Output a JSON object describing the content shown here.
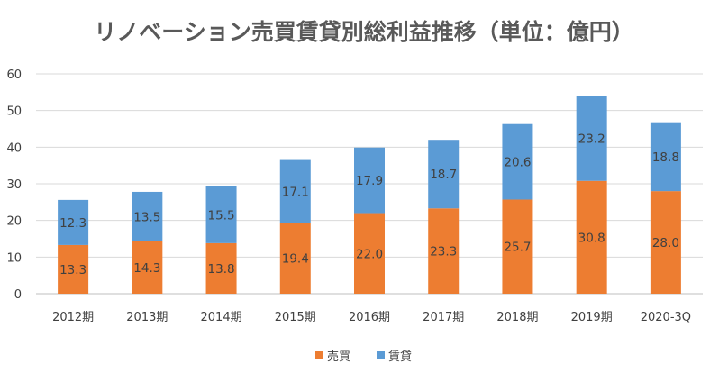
{
  "chart_data": {
    "type": "bar",
    "stacked": true,
    "title": "リノベーション売買賃貸別総利益推移（単位：億円）",
    "categories": [
      "2012期",
      "2013期",
      "2014期",
      "2015期",
      "2016期",
      "2017期",
      "2018期",
      "2019期",
      "2020-3Q"
    ],
    "series": [
      {
        "name": "売買",
        "color": "#ED7D31",
        "values": [
          13.3,
          14.3,
          13.8,
          19.4,
          22.0,
          23.3,
          25.7,
          30.8,
          28.0
        ]
      },
      {
        "name": "賃貸",
        "color": "#5B9BD5",
        "values": [
          12.3,
          13.5,
          15.5,
          17.1,
          17.9,
          18.7,
          20.6,
          23.2,
          18.8
        ]
      }
    ],
    "ylim": [
      0,
      60
    ],
    "yticks": [
      0,
      10,
      20,
      30,
      40,
      50,
      60
    ],
    "grid": true,
    "legend": "bottom",
    "xlabel": "",
    "ylabel": ""
  }
}
